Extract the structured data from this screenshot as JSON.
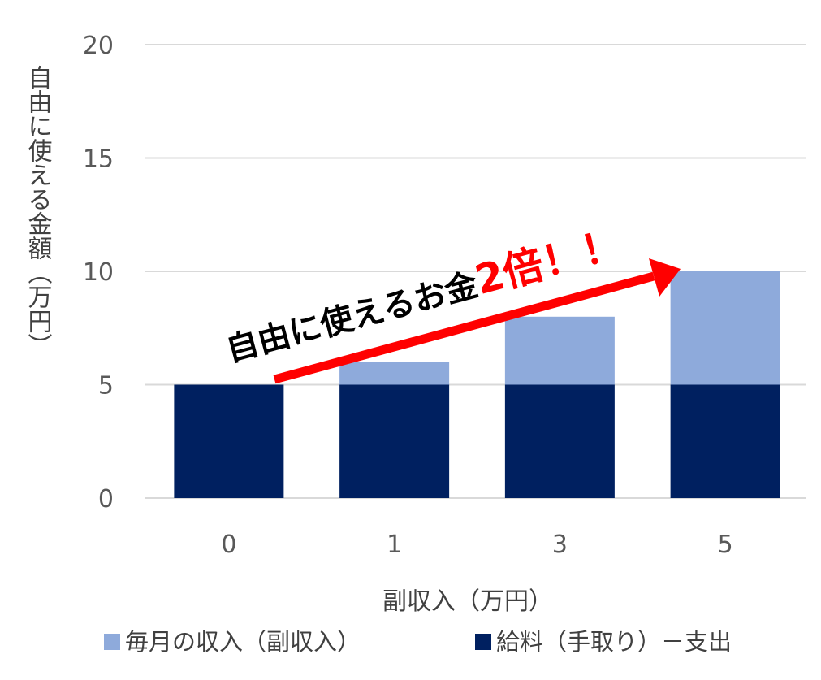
{
  "chart_data": {
    "type": "bar",
    "stacked": true,
    "categories": [
      "0",
      "1",
      "3",
      "5"
    ],
    "series": [
      {
        "name": "給料（手取り）－支出",
        "values": [
          5,
          5,
          5,
          5
        ],
        "color": "#002060"
      },
      {
        "name": "毎月の収入（副収入）",
        "values": [
          0,
          1,
          3,
          5
        ],
        "color": "#8eaadb"
      }
    ],
    "xlabel": "副収入（万円）",
    "ylabel": "自由に使える金額（万円）",
    "ylim": [
      0,
      20
    ],
    "yticks": [
      "0",
      "5",
      "10",
      "15",
      "20"
    ],
    "grid": true,
    "legend_position": "bottom",
    "annotation": {
      "text": "自由に使えるお金",
      "emphasis": "2倍！！",
      "arrow_color": "#ff0000"
    }
  }
}
